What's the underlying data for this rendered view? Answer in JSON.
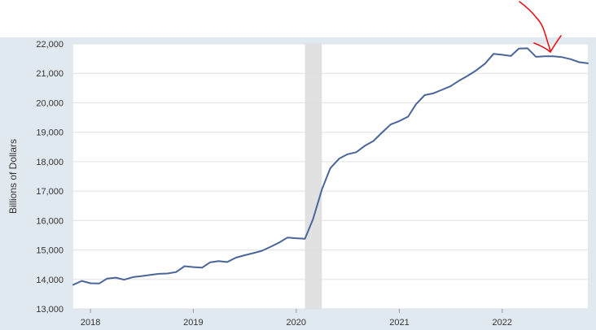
{
  "chart_data": {
    "type": "line",
    "title": "",
    "xlabel": "",
    "ylabel": "Billions of Dollars",
    "ylim": [
      13000,
      22000
    ],
    "xlim": [
      "2017-11-01",
      "2022-11-01"
    ],
    "y_ticks": [
      13000,
      14000,
      15000,
      16000,
      17000,
      18000,
      19000,
      20000,
      21000,
      22000
    ],
    "y_tick_labels": [
      "13,000",
      "14,000",
      "15,000",
      "16,000",
      "17,000",
      "18,000",
      "19,000",
      "20,000",
      "21,000",
      "22,000"
    ],
    "x_ticks": [
      "2018-01-01",
      "2019-01-01",
      "2020-01-01",
      "2021-01-01",
      "2022-01-01"
    ],
    "x_tick_labels": [
      "2018",
      "2019",
      "2020",
      "2021",
      "2022"
    ],
    "grid": true,
    "legend": "none",
    "recession": {
      "start": "2020-02-01",
      "end": "2020-04-01"
    },
    "colors": {
      "line": "#4a6699",
      "recession": "#e1e1e1",
      "frame": "#e1e9f0",
      "grid": "#e0e0e0",
      "annotation": "#e8161b"
    },
    "annotation": {
      "type": "hand-drawn-arrow",
      "points_to": "2022-07-01"
    },
    "series": [
      {
        "x": [
          "2017-11-01",
          "2017-12-01",
          "2018-01-01",
          "2018-02-01",
          "2018-03-01",
          "2018-04-01",
          "2018-05-01",
          "2018-06-01",
          "2018-07-01",
          "2018-08-01",
          "2018-09-01",
          "2018-10-01",
          "2018-11-01",
          "2018-12-01",
          "2019-01-01",
          "2019-02-01",
          "2019-03-01",
          "2019-04-01",
          "2019-05-01",
          "2019-06-01",
          "2019-07-01",
          "2019-08-01",
          "2019-09-01",
          "2019-10-01",
          "2019-11-01",
          "2019-12-01",
          "2020-01-01",
          "2020-02-01",
          "2020-03-01",
          "2020-04-01",
          "2020-05-01",
          "2020-06-01",
          "2020-07-01",
          "2020-08-01",
          "2020-09-01",
          "2020-10-01",
          "2020-11-01",
          "2020-12-01",
          "2021-01-01",
          "2021-02-01",
          "2021-03-01",
          "2021-04-01",
          "2021-05-01",
          "2021-06-01",
          "2021-07-01",
          "2021-08-01",
          "2021-09-01",
          "2021-10-01",
          "2021-11-01",
          "2021-12-01",
          "2022-01-01",
          "2022-02-01",
          "2022-03-01",
          "2022-04-01",
          "2022-05-01",
          "2022-06-01",
          "2022-07-01",
          "2022-08-01",
          "2022-09-01",
          "2022-10-01",
          "2022-11-01"
        ],
        "values": [
          13820,
          13950,
          13870,
          13860,
          14030,
          14060,
          13990,
          14080,
          14110,
          14150,
          14190,
          14200,
          14250,
          14450,
          14420,
          14400,
          14580,
          14620,
          14590,
          14740,
          14820,
          14890,
          14970,
          15100,
          15250,
          15420,
          15400,
          15380,
          16050,
          17050,
          17780,
          18100,
          18250,
          18320,
          18540,
          18700,
          18990,
          19260,
          19380,
          19530,
          19950,
          20260,
          20320,
          20440,
          20560,
          20750,
          20920,
          21100,
          21330,
          21660,
          21630,
          21590,
          21840,
          21850,
          21560,
          21580,
          21580,
          21550,
          21480,
          21380,
          21340
        ]
      }
    ]
  }
}
